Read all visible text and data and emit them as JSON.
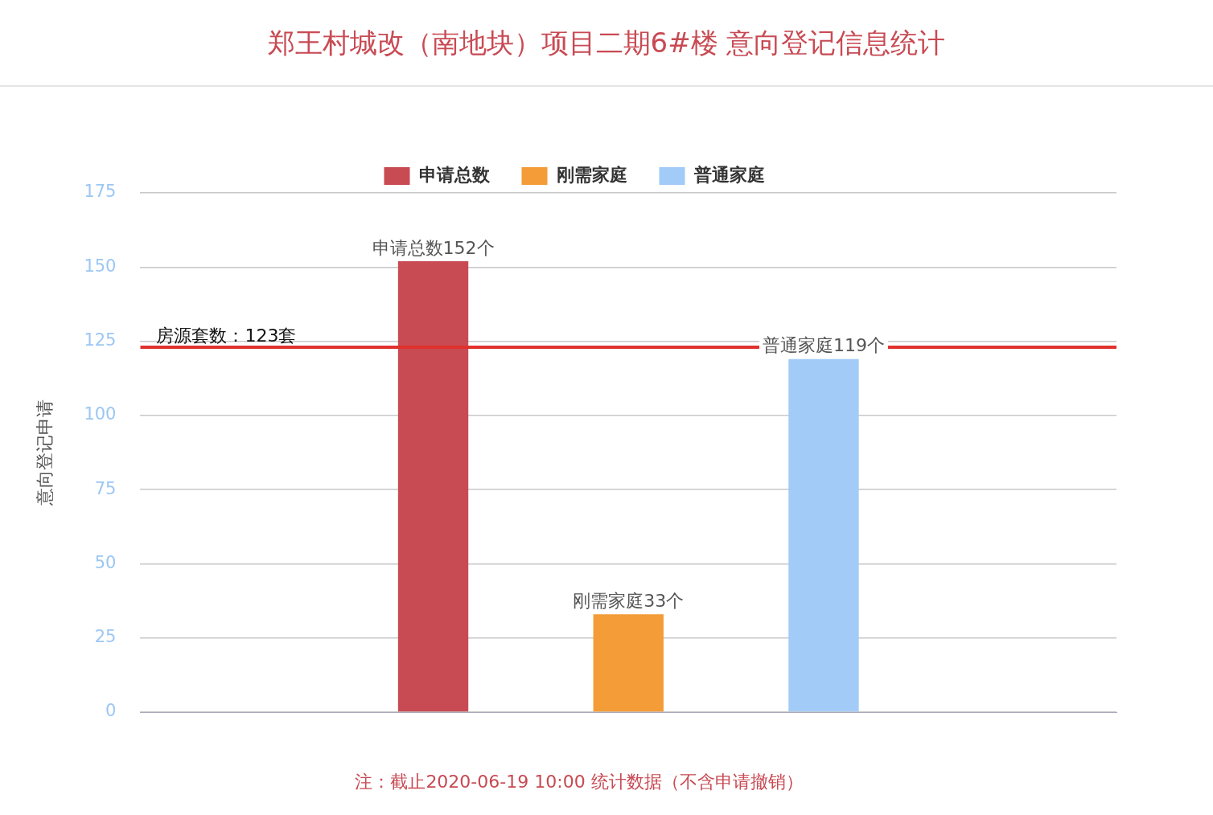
{
  "chart_data": {
    "type": "bar",
    "title": "郑王村城改（南地块）项目二期6#楼 意向登记信息统计",
    "ylabel": "意向登记申请",
    "categories": [
      null
    ],
    "series": [
      {
        "name": "申请总数",
        "color": "#c84a53",
        "values": [
          152
        ],
        "value_labels": [
          "申请总数152个"
        ]
      },
      {
        "name": "刚需家庭",
        "color": "#f39c38",
        "values": [
          33
        ],
        "value_labels": [
          "刚需家庭33个"
        ]
      },
      {
        "name": "普通家庭",
        "color": "#a2cbf8",
        "values": [
          119
        ],
        "value_labels": [
          "普通家庭119个"
        ]
      }
    ],
    "ylim": [
      0,
      175
    ],
    "yticks": [
      0,
      25,
      50,
      75,
      100,
      125,
      150,
      175
    ],
    "grid": "y",
    "legend": "top",
    "ref_lines": [
      {
        "axis": "y",
        "value": 123,
        "label": "房源套数：123套",
        "color": "#e0312d"
      }
    ],
    "annotations": [
      "注：截止2020-06-19 10:00 统计数据（不含申请撤销）"
    ]
  }
}
